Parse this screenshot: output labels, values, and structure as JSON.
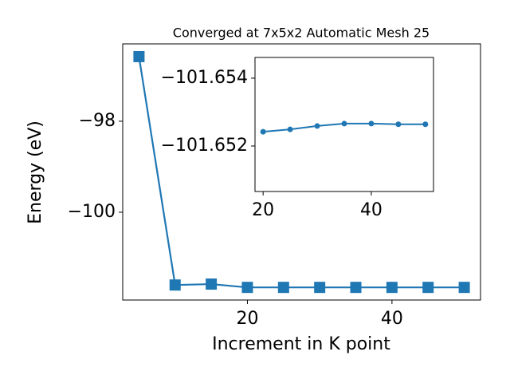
{
  "chart_data": [
    {
      "type": "line",
      "title": "Converged at 7x5x2 Automatic Mesh 25",
      "x_label": "Increment in K point",
      "y_label": "Energy (eV)",
      "marker": "square",
      "color": "#1f77b4",
      "x": [
        5,
        10,
        15,
        20,
        25,
        30,
        35,
        40,
        45,
        50
      ],
      "values": [
        -96.58,
        -101.6,
        -101.58,
        -101.6524,
        -101.6525,
        -101.6526,
        -101.6527,
        -101.6527,
        -101.6526,
        -101.6526
      ],
      "xlim": [
        2.75,
        52.25
      ],
      "ylim": [
        -101.93,
        -96.3
      ],
      "xticks": [
        20,
        40
      ],
      "yticks": [
        {
          "value": -100,
          "label": "−100"
        },
        {
          "value": -98,
          "label": "−98"
        }
      ]
    },
    {
      "type": "line",
      "marker": "circle",
      "color": "#1f77b4",
      "x": [
        20,
        25,
        30,
        35,
        40,
        45,
        50
      ],
      "values": [
        -101.65242,
        -101.65249,
        -101.65259,
        -101.65266,
        -101.65266,
        -101.65264,
        -101.65264
      ],
      "xlim": [
        18.5,
        51.5
      ],
      "ylim": [
        -101.65066,
        -101.65461
      ],
      "xticks": [
        20,
        40
      ],
      "yticks": [
        {
          "value": -101.654,
          "label": "−101.654"
        },
        {
          "value": -101.652,
          "label": "−101.652"
        }
      ]
    }
  ]
}
